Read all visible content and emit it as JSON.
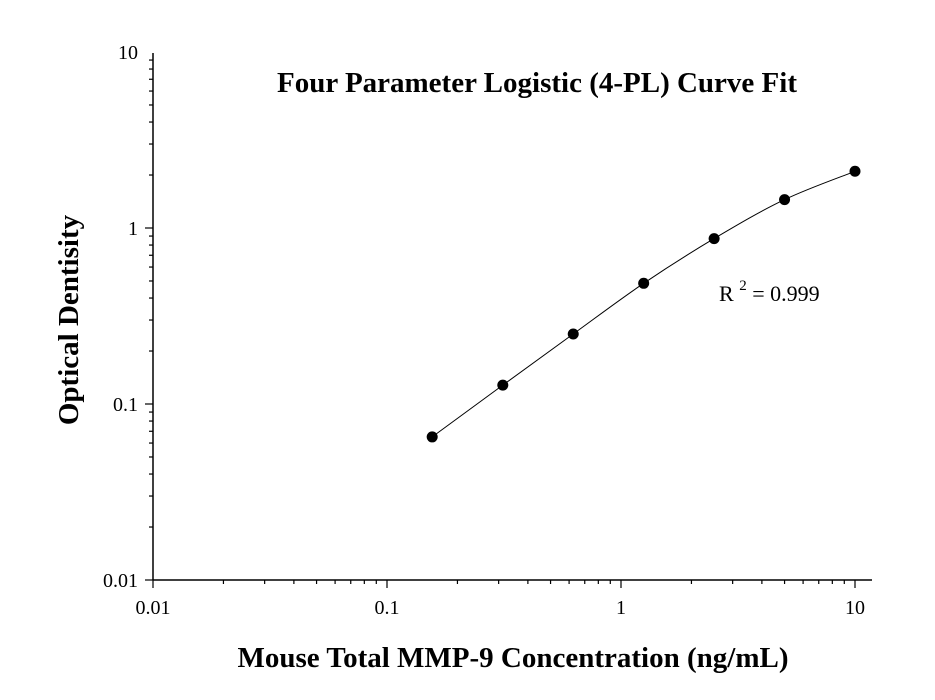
{
  "chart_data": {
    "type": "scatter",
    "title": "Four Parameter Logistic (4-PL) Curve Fit",
    "xlabel": "Mouse Total MMP-9 Concentration (ng/mL)",
    "ylabel": "Optical Dentisity",
    "x_scale": "log",
    "y_scale": "log",
    "xlim": [
      0.01,
      10
    ],
    "ylim": [
      0.01,
      10
    ],
    "x_ticks": [
      0.01,
      0.1,
      1,
      10
    ],
    "x_tick_labels": [
      "0.01",
      "0.1",
      "1",
      "10"
    ],
    "y_ticks": [
      0.01,
      0.1,
      1,
      10
    ],
    "y_tick_labels": [
      "0.01",
      "0.1",
      "1",
      "10"
    ],
    "grid": false,
    "series": [
      {
        "x": [
          0.156,
          0.3125,
          0.625,
          1.25,
          2.5,
          5,
          10
        ],
        "y": [
          0.065,
          0.128,
          0.25,
          0.485,
          0.87,
          1.45,
          2.1
        ]
      }
    ],
    "annotation": {
      "base": "R",
      "sup": "2",
      "text": "= 0.999"
    },
    "colors": {
      "points": "#000000",
      "curve": "#000000",
      "axes": "#000000"
    }
  }
}
